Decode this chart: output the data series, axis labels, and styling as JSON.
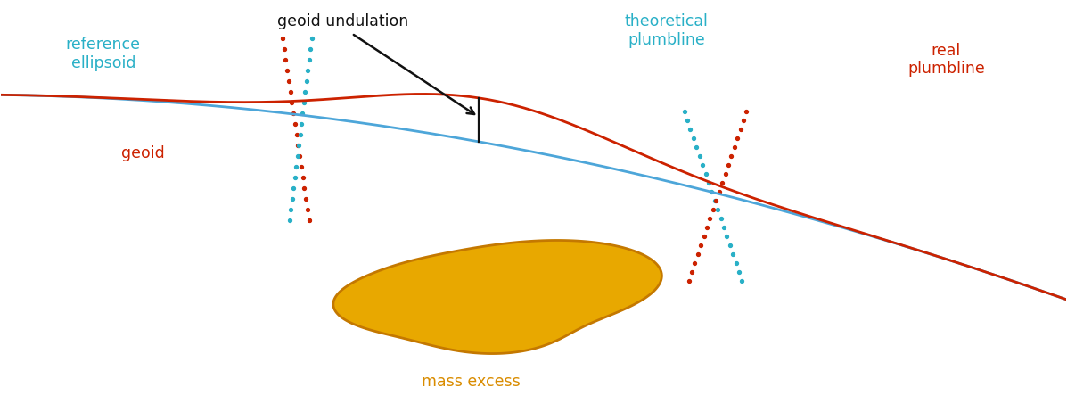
{
  "bg_color": "#ffffff",
  "ellipsoid_color": "#4da6d9",
  "geoid_color": "#cc2200",
  "plumb_theo_color": "#29b0c7",
  "plumb_real_color": "#cc2200",
  "mass_excess_fill": "#e8a800",
  "mass_excess_edge": "#c47800",
  "arrow_color": "#111111",
  "label_ellipsoid": "reference\nellipsoid",
  "label_geoid": "geoid",
  "label_undulation": "geoid undulation",
  "label_theo_plumb": "theoretical\nplumbline",
  "label_real_plumb": "real\nplumbline",
  "label_mass": "mass excess",
  "label_color_cyan": "#29b0c7",
  "label_color_red": "#cc2200",
  "label_color_orange": "#d98c00",
  "label_color_black": "#111111",
  "figsize": [
    11.97,
    4.62
  ],
  "dpi": 100
}
